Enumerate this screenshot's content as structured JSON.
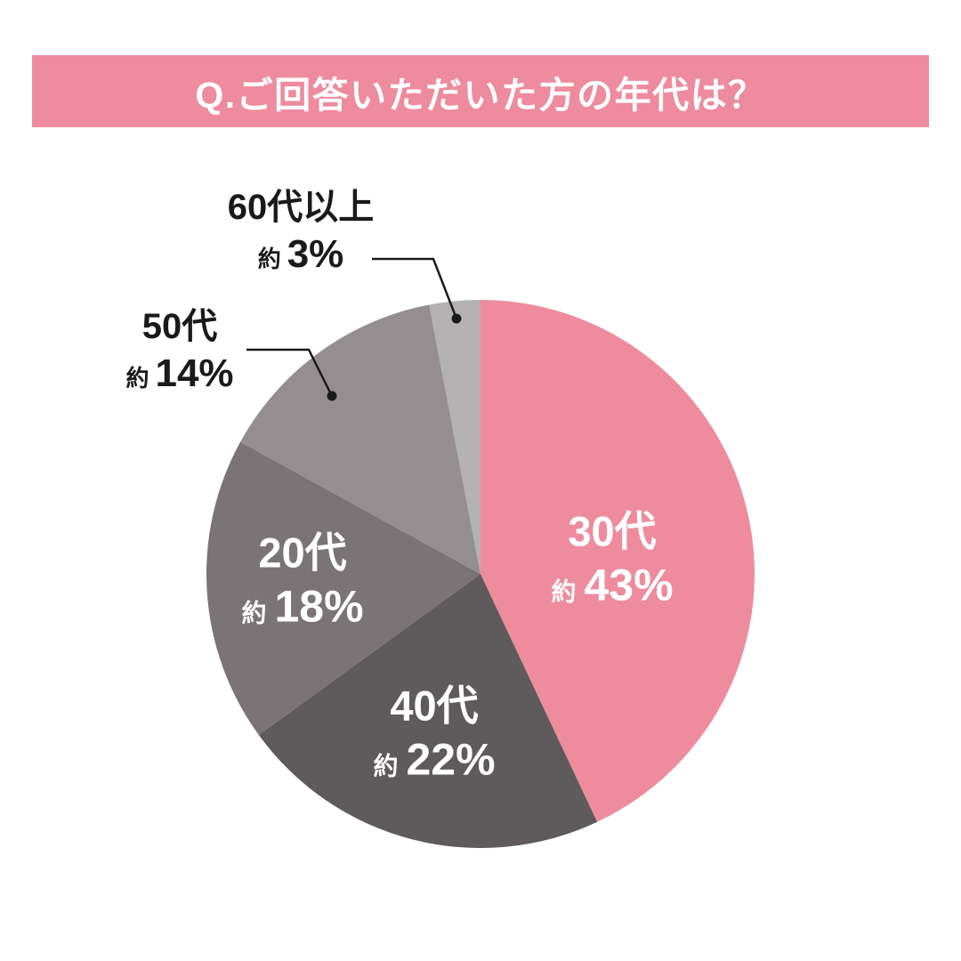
{
  "page": {
    "background_color": "#ffffff"
  },
  "header": {
    "title": "Q.ご回答いただいた方の年代は？",
    "background_color": "#ee8b9e",
    "text_color": "#ffffff"
  },
  "chart_data": {
    "type": "pie",
    "title": "Q.ご回答いただいた方の年代は？",
    "unit": "%",
    "direction": "clockwise",
    "start_angle_deg": 0,
    "legend": "none",
    "categories": [
      "30代",
      "40代",
      "20代",
      "50代",
      "60代以上"
    ],
    "values": [
      43,
      22,
      18,
      14,
      3
    ],
    "slices": [
      {
        "key": "30s",
        "label": "30代",
        "approx": "約",
        "value": 43,
        "value_display": "43%",
        "color": "#ee8c9e",
        "label_position": "inside"
      },
      {
        "key": "40s",
        "label": "40代",
        "approx": "約",
        "value": 22,
        "value_display": "22%",
        "color": "#5f5a5c",
        "label_position": "inside"
      },
      {
        "key": "20s",
        "label": "20代",
        "approx": "約",
        "value": 18,
        "value_display": "18%",
        "color": "#7b7477",
        "label_position": "inside"
      },
      {
        "key": "50s",
        "label": "50代",
        "approx": "約",
        "value": 14,
        "value_display": "14%",
        "color": "#958e90",
        "label_position": "outside"
      },
      {
        "key": "60s-plus",
        "label": "60代以上",
        "approx": "約",
        "value": 3,
        "value_display": "3%",
        "color": "#b4b1b3",
        "label_position": "outside"
      }
    ],
    "label_text_color_inside": "#ffffff",
    "label_text_color_outside": "#1a1a1a"
  }
}
